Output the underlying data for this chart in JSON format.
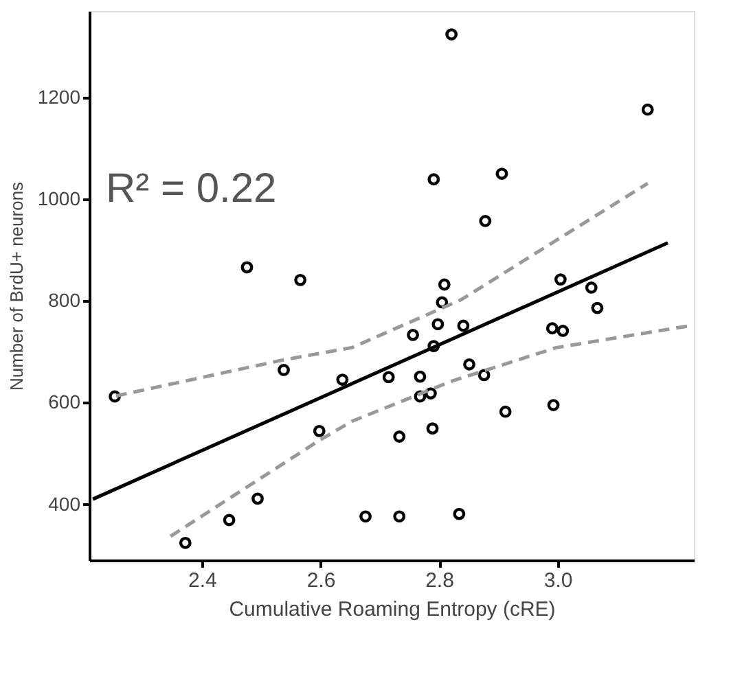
{
  "chart_data": {
    "type": "scatter",
    "xlabel": "Cumulative Roaming Entropy (cRE)",
    "ylabel": "Number of BrdU+ neurons",
    "annotations": [
      "R² = 0.22"
    ],
    "xlim": [
      2.21,
      3.23
    ],
    "ylim": [
      290,
      1370
    ],
    "xticks": [
      2.4,
      2.6,
      2.8,
      {
        "value": 3.0,
        "label": "3.0"
      }
    ],
    "yticks": [
      400,
      600,
      800,
      1000,
      1200
    ],
    "grid": false,
    "series": [
      {
        "color": "#000000",
        "marker": "circle",
        "x": [
          2.253,
          2.372,
          2.446,
          2.494,
          2.476,
          2.538,
          2.566,
          2.598,
          2.637,
          2.676,
          2.715,
          2.733,
          2.733,
          2.756,
          2.798,
          2.841,
          2.791,
          2.768,
          2.768,
          2.786,
          2.851,
          2.876,
          2.912,
          2.993,
          2.991,
          3.009,
          3.067,
          2.789,
          2.834,
          2.821,
          3.152,
          2.791,
          2.906,
          2.878,
          2.809,
          2.805,
          3.005,
          3.057
        ],
        "values": [
          612,
          324,
          369,
          411,
          866,
          664,
          841,
          544,
          645,
          376,
          650,
          376,
          533,
          733,
          754,
          751,
          711,
          651,
          612,
          618,
          675,
          654,
          582,
          595,
          746,
          741,
          786,
          549,
          381,
          1324,
          1176,
          1039,
          1050,
          957,
          832,
          797,
          842,
          826
        ]
      },
      {
        "type": "line",
        "color": "#000000",
        "line_style": "solid",
        "marker": "none",
        "x": [
          2.216,
          3.186
        ],
        "values": [
          410,
          914
        ]
      },
      {
        "type": "line",
        "color": "#999999",
        "line_style": "dashed",
        "marker": "none",
        "x": [
          2.255,
          2.538,
          2.653,
          2.837,
          3.152
        ],
        "values": [
          613,
          684,
          708,
          802,
          1031
        ]
      },
      {
        "type": "line",
        "color": "#999999",
        "line_style": "dashed",
        "marker": "none",
        "x": [
          2.347,
          2.6,
          2.653,
          2.821,
          2.998,
          3.223
        ],
        "values": [
          337,
          527,
          563,
          642,
          708,
          751
        ]
      }
    ]
  }
}
